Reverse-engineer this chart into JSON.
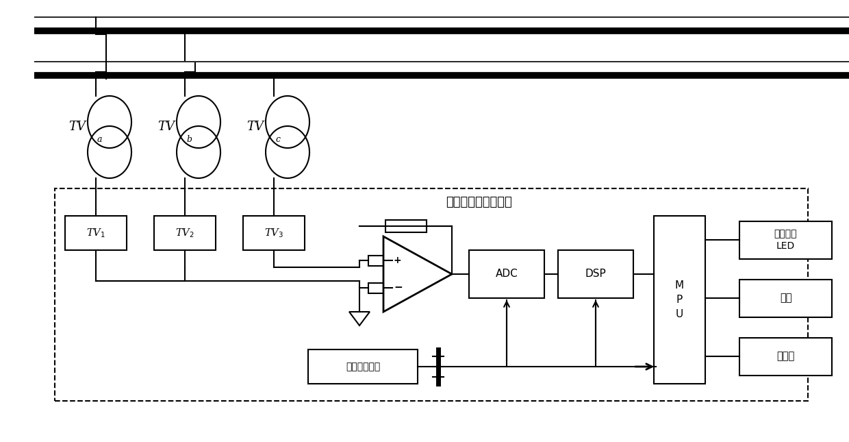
{
  "bg_color": "#ffffff",
  "lc": "#000000",
  "fig_width": 12.4,
  "fig_height": 6.45,
  "title_text": "电压互感器监测装置",
  "power_label": "开关电源模块",
  "tv1_label": "TV$_1$",
  "tv2_label": "TV$_2$",
  "tv3_label": "TV$_3$",
  "adc_label": "ADC",
  "dsp_label": "DSP",
  "mpu_label": "M\nP\nU",
  "led_label": "状态指示\nLED",
  "kb_label": "键盘",
  "disp_label": "显示器",
  "tva_main": "TV",
  "tva_sub": "a",
  "tvb_main": "TV",
  "tvb_sub": "b",
  "tvc_main": "TV",
  "tvc_sub": "c"
}
